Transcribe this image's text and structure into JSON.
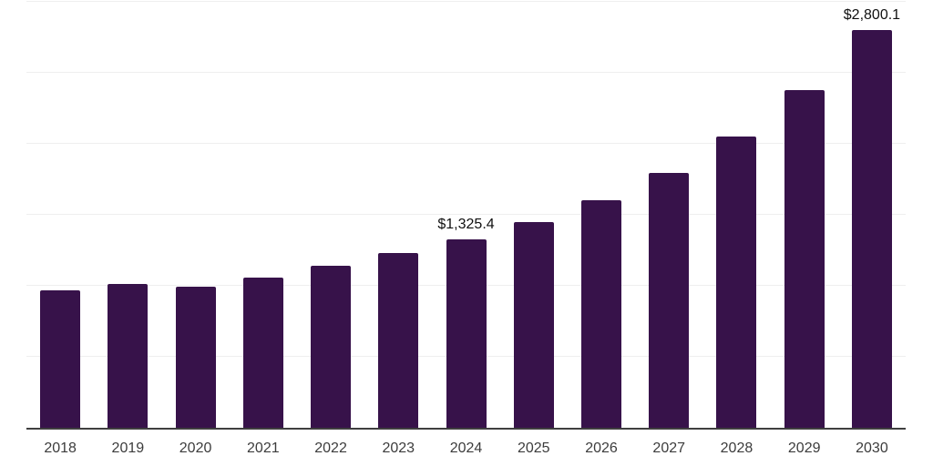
{
  "chart_data": {
    "type": "bar",
    "categories": [
      "2018",
      "2019",
      "2020",
      "2021",
      "2022",
      "2023",
      "2024",
      "2025",
      "2026",
      "2027",
      "2028",
      "2029",
      "2030"
    ],
    "values": [
      970,
      1015,
      995,
      1060,
      1140,
      1230,
      1325.4,
      1450,
      1600,
      1795,
      2050,
      2380,
      2800.1
    ],
    "point_labels": [
      "",
      "",
      "",
      "",
      "",
      "",
      "$1,325.4",
      "",
      "",
      "",
      "",
      "",
      "$2,800.1"
    ],
    "ylim": [
      0,
      3000
    ],
    "grid_step": 500,
    "grid": "horizontal-only",
    "legend": "none",
    "y_axis_labels": "none",
    "bar_color": "#37124A",
    "axis_line_color": "#3F3F3F",
    "gridline_color": "#EFEFEF",
    "tick_label_color": "#3C3C3C",
    "data_label_color": "#101010"
  }
}
